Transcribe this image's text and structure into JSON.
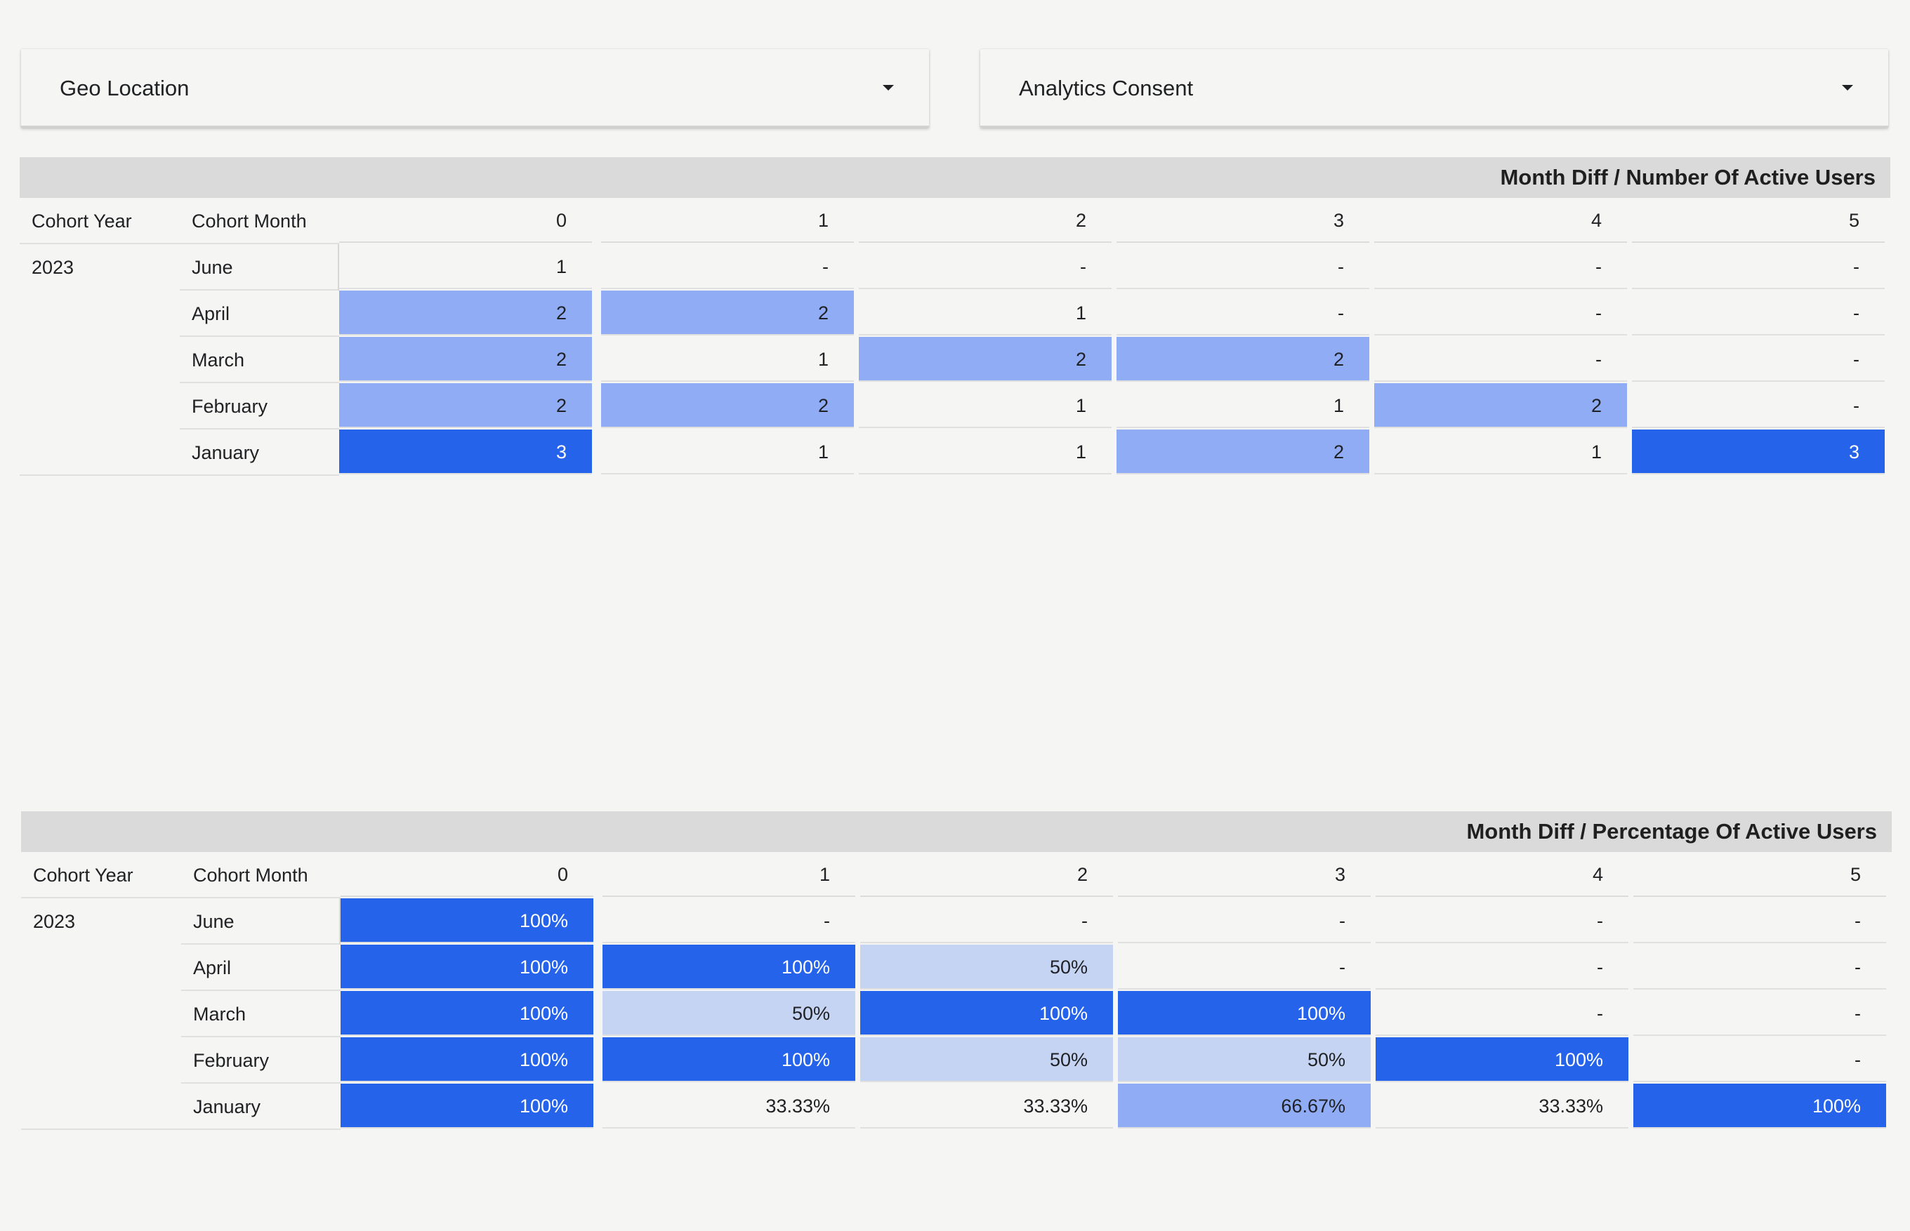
{
  "filters": [
    {
      "label": "Geo Location"
    },
    {
      "label": "Analytics Consent"
    }
  ],
  "colors": {
    "dark": "#2563eb",
    "medium": "#8facf5",
    "light": "#c6d4f3",
    "none": "transparent"
  },
  "tables": [
    {
      "title": "Month Diff / Number Of Active Users",
      "row_headers": [
        "Cohort Year",
        "Cohort Month"
      ],
      "columns": [
        "0",
        "1",
        "2",
        "3",
        "4",
        "5"
      ],
      "year": "2023",
      "rows": [
        {
          "month": "June",
          "values": [
            "1",
            "-",
            "-",
            "-",
            "-",
            "-"
          ],
          "shade": [
            "none",
            "none",
            "none",
            "none",
            "none",
            "none"
          ]
        },
        {
          "month": "April",
          "values": [
            "2",
            "2",
            "1",
            "-",
            "-",
            "-"
          ],
          "shade": [
            "medium",
            "medium",
            "none",
            "none",
            "none",
            "none"
          ]
        },
        {
          "month": "March",
          "values": [
            "2",
            "1",
            "2",
            "2",
            "-",
            "-"
          ],
          "shade": [
            "medium",
            "none",
            "medium",
            "medium",
            "none",
            "none"
          ]
        },
        {
          "month": "February",
          "values": [
            "2",
            "2",
            "1",
            "1",
            "2",
            "-"
          ],
          "shade": [
            "medium",
            "medium",
            "none",
            "none",
            "medium",
            "none"
          ]
        },
        {
          "month": "January",
          "values": [
            "3",
            "1",
            "1",
            "2",
            "1",
            "3"
          ],
          "shade": [
            "dark",
            "none",
            "none",
            "medium",
            "none",
            "dark"
          ]
        }
      ]
    },
    {
      "title": "Month Diff / Percentage Of Active Users",
      "row_headers": [
        "Cohort Year",
        "Cohort Month"
      ],
      "columns": [
        "0",
        "1",
        "2",
        "3",
        "4",
        "5"
      ],
      "year": "2023",
      "rows": [
        {
          "month": "June",
          "values": [
            "100%",
            "-",
            "-",
            "-",
            "-",
            "-"
          ],
          "shade": [
            "dark",
            "none",
            "none",
            "none",
            "none",
            "none"
          ]
        },
        {
          "month": "April",
          "values": [
            "100%",
            "100%",
            "50%",
            "-",
            "-",
            "-"
          ],
          "shade": [
            "dark",
            "dark",
            "light",
            "none",
            "none",
            "none"
          ]
        },
        {
          "month": "March",
          "values": [
            "100%",
            "50%",
            "100%",
            "100%",
            "-",
            "-"
          ],
          "shade": [
            "dark",
            "light",
            "dark",
            "dark",
            "none",
            "none"
          ]
        },
        {
          "month": "February",
          "values": [
            "100%",
            "100%",
            "50%",
            "50%",
            "100%",
            "-"
          ],
          "shade": [
            "dark",
            "dark",
            "light",
            "light",
            "dark",
            "none"
          ]
        },
        {
          "month": "January",
          "values": [
            "100%",
            "33.33%",
            "33.33%",
            "66.67%",
            "33.33%",
            "100%"
          ],
          "shade": [
            "dark",
            "none",
            "none",
            "medium",
            "none",
            "dark"
          ]
        }
      ]
    }
  ]
}
